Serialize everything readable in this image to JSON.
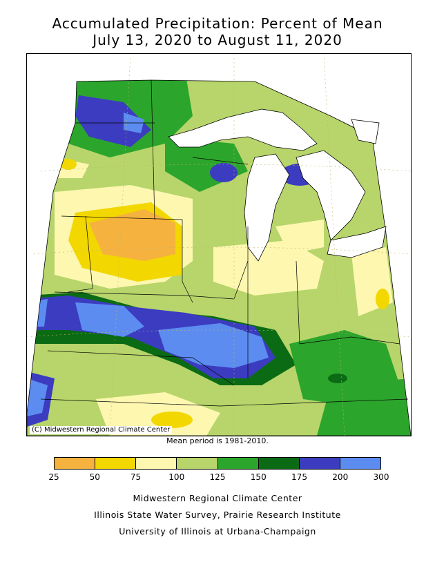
{
  "title": {
    "line1": "Accumulated Precipitation: Percent of Mean",
    "line2": "July 13, 2020 to August 11, 2020"
  },
  "map": {
    "credit": "(C) Midwestern Regional Climate Center",
    "mean_period": "Mean period is 1981-2010."
  },
  "legend": {
    "bins": [
      {
        "from": 25,
        "to": 50,
        "color": "#f6b23e"
      },
      {
        "from": 50,
        "to": 75,
        "color": "#f2d700"
      },
      {
        "from": 75,
        "to": 100,
        "color": "#fdf7b0"
      },
      {
        "from": 100,
        "to": 125,
        "color": "#b7d56b"
      },
      {
        "from": 125,
        "to": 150,
        "color": "#2ca52c"
      },
      {
        "from": 150,
        "to": 175,
        "color": "#0b6b14"
      },
      {
        "from": 175,
        "to": 200,
        "color": "#3c3cc0"
      },
      {
        "from": 200,
        "to": 300,
        "color": "#5c8cf0"
      }
    ],
    "ticks": [
      "25",
      "50",
      "75",
      "100",
      "125",
      "150",
      "175",
      "200",
      "300"
    ]
  },
  "footer": {
    "line1": "Midwestern Regional Climate Center",
    "line2": "Illinois State Water Survey, Prairie Research Institute",
    "line3": "University of Illinois at Urbana-Champaign"
  }
}
